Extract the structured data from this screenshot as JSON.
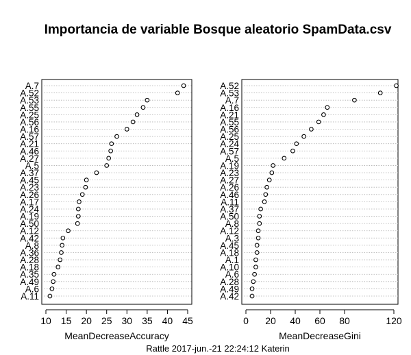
{
  "title": "Importancia de variable Bosque aleatorio SpamData.csv",
  "footer": "Rattle 2017-jun.-21 22:24:12 Katerin",
  "chart_data": [
    {
      "type": "scatter",
      "subtype": "dotchart",
      "xlabel": "MeanDecreaseAccuracy",
      "ylabel": "",
      "xlim": [
        10,
        45
      ],
      "xticks": [
        10,
        15,
        20,
        25,
        30,
        35,
        40,
        45
      ],
      "grid": true,
      "categories": [
        "A.7",
        "A.52",
        "A.53",
        "A.55",
        "A.25",
        "A.56",
        "A.16",
        "A.57",
        "A.21",
        "A.46",
        "A.27",
        "A.5",
        "A.37",
        "A.45",
        "A.23",
        "A.26",
        "A.17",
        "A.24",
        "A.19",
        "A.50",
        "A.12",
        "A.42",
        "A.8",
        "A.36",
        "A.28",
        "A.18",
        "A.35",
        "A.49",
        "A.6",
        "A.11"
      ],
      "values": [
        44,
        42.5,
        35,
        34,
        32.5,
        31.5,
        30,
        27.5,
        26.2,
        26,
        25.5,
        25,
        22.5,
        20,
        19.8,
        19,
        18.2,
        18,
        18,
        17.8,
        15.5,
        14.2,
        14,
        13.8,
        13.5,
        13,
        12,
        11.8,
        11.5,
        11
      ]
    },
    {
      "type": "scatter",
      "subtype": "dotchart",
      "xlabel": "MeanDecreaseGini",
      "ylabel": "",
      "xlim": [
        0,
        120
      ],
      "xticks": [
        0,
        20,
        40,
        60,
        80,
        120
      ],
      "grid": true,
      "categories": [
        "A.52",
        "A.53",
        "A.7",
        "A.16",
        "A.21",
        "A.55",
        "A.56",
        "A.25",
        "A.24",
        "A.57",
        "A.5",
        "A.19",
        "A.23",
        "A.27",
        "A.26",
        "A.46",
        "A.11",
        "A.37",
        "A.50",
        "A.8",
        "A.12",
        "A.3",
        "A.45",
        "A.18",
        "A.1",
        "A.10",
        "A.6",
        "A.28",
        "A.49",
        "A.42"
      ],
      "values": [
        122,
        109,
        88,
        66,
        63,
        59,
        53,
        47,
        41,
        38,
        31,
        22,
        21,
        19,
        17,
        16,
        15,
        12,
        11,
        11,
        10,
        10,
        9,
        9,
        8,
        8,
        7,
        6,
        5,
        5
      ]
    }
  ]
}
